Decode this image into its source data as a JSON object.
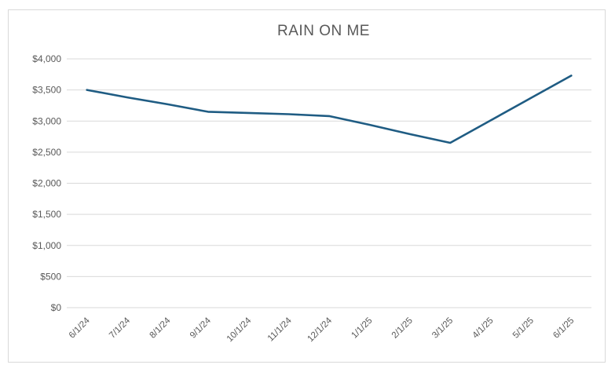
{
  "chart_data": {
    "type": "line",
    "title": "RAIN ON ME",
    "categories": [
      "6/1/24",
      "7/1/24",
      "8/1/24",
      "9/1/24",
      "10/1/24",
      "11/1/24",
      "12/1/24",
      "1/1/25",
      "2/1/25",
      "3/1/25",
      "4/1/25",
      "5/1/25",
      "6/1/25"
    ],
    "values": [
      3500,
      3380,
      3270,
      3150,
      3130,
      3110,
      3080,
      2940,
      2790,
      2650,
      3010,
      3370,
      3730
    ],
    "xlabel": "",
    "ylabel": "",
    "ylim": [
      0,
      4000
    ],
    "ytick_step": 500,
    "ytick_labels": [
      "$0",
      "$500",
      "$1,000",
      "$1,500",
      "$2,000",
      "$2,500",
      "$3,000",
      "$3,500",
      "$4,000"
    ],
    "grid": true,
    "legend": false,
    "colors": {
      "line": "#1f5c83",
      "gridline": "#d9d9d9",
      "text": "#595959",
      "frame_border": "#d9d9d9",
      "background": "#ffffff"
    }
  }
}
